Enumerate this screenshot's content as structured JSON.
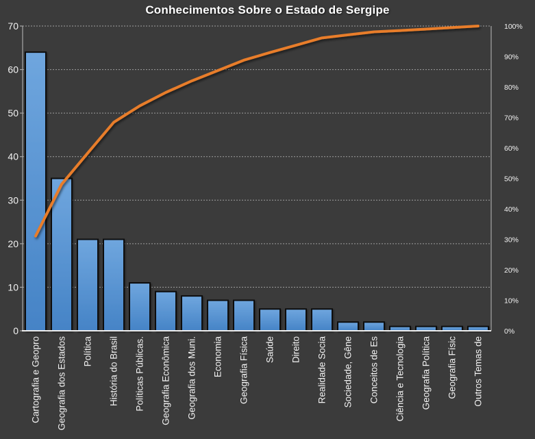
{
  "colors": {
    "background": "#3B3B3B",
    "bar_fill_top": "#6FA6DE",
    "bar_fill_bottom": "#4583C6",
    "bar_border": "#0E0E0E",
    "line": "#E87D2B",
    "gridline": "#ABABAB",
    "axis_line": "#A7A7A7",
    "bottom_axis_line": "#EDEDED",
    "text": "#F2F2F2"
  },
  "chart_data": {
    "type": "bar",
    "subtype": "pareto (bars + cumulative % line)",
    "title": "Conhecimentos Sobre o Estado de Sergipe",
    "categories": [
      "Cartografia e Geopro",
      "Geografia dos Estados",
      "Política",
      "História do Brasil",
      "Políticas Públicas.",
      "Geografia Econômica",
      "Geografia dos Muni.",
      "Economia",
      "Geografia Física",
      "Saúde",
      "Direito",
      "Realidade Socia",
      "Sociedade, Gêne",
      "Conceitos de Es",
      "Ciência e Tecnologia",
      "Geografia Política",
      "Geografia Físic",
      "Outros Temas de"
    ],
    "series": [
      {
        "id": "bars",
        "axis": "left",
        "values": [
          64,
          35,
          21,
          21,
          11,
          9,
          8,
          7,
          7,
          5,
          5,
          5,
          2,
          2,
          1,
          1,
          1,
          1
        ]
      },
      {
        "id": "cumulative_percent_line",
        "axis": "right",
        "values": [
          31.1,
          48.1,
          58.3,
          68.4,
          73.8,
          78.2,
          82.0,
          85.4,
          88.8,
          91.3,
          93.7,
          96.1,
          97.1,
          98.1,
          98.5,
          99.0,
          99.5,
          100.0
        ]
      }
    ],
    "left_axis": {
      "min": 0,
      "max": 70,
      "step": 10,
      "tick_labels": [
        "0",
        "10",
        "20",
        "30",
        "40",
        "50",
        "60",
        "70"
      ]
    },
    "right_axis": {
      "min": 0,
      "max": 100,
      "step": 10,
      "tick_labels": [
        "0%",
        "10%",
        "20%",
        "30%",
        "40%",
        "50%",
        "60%",
        "70%",
        "80%",
        "90%",
        "100%"
      ]
    },
    "grid": true,
    "legend": "none"
  }
}
